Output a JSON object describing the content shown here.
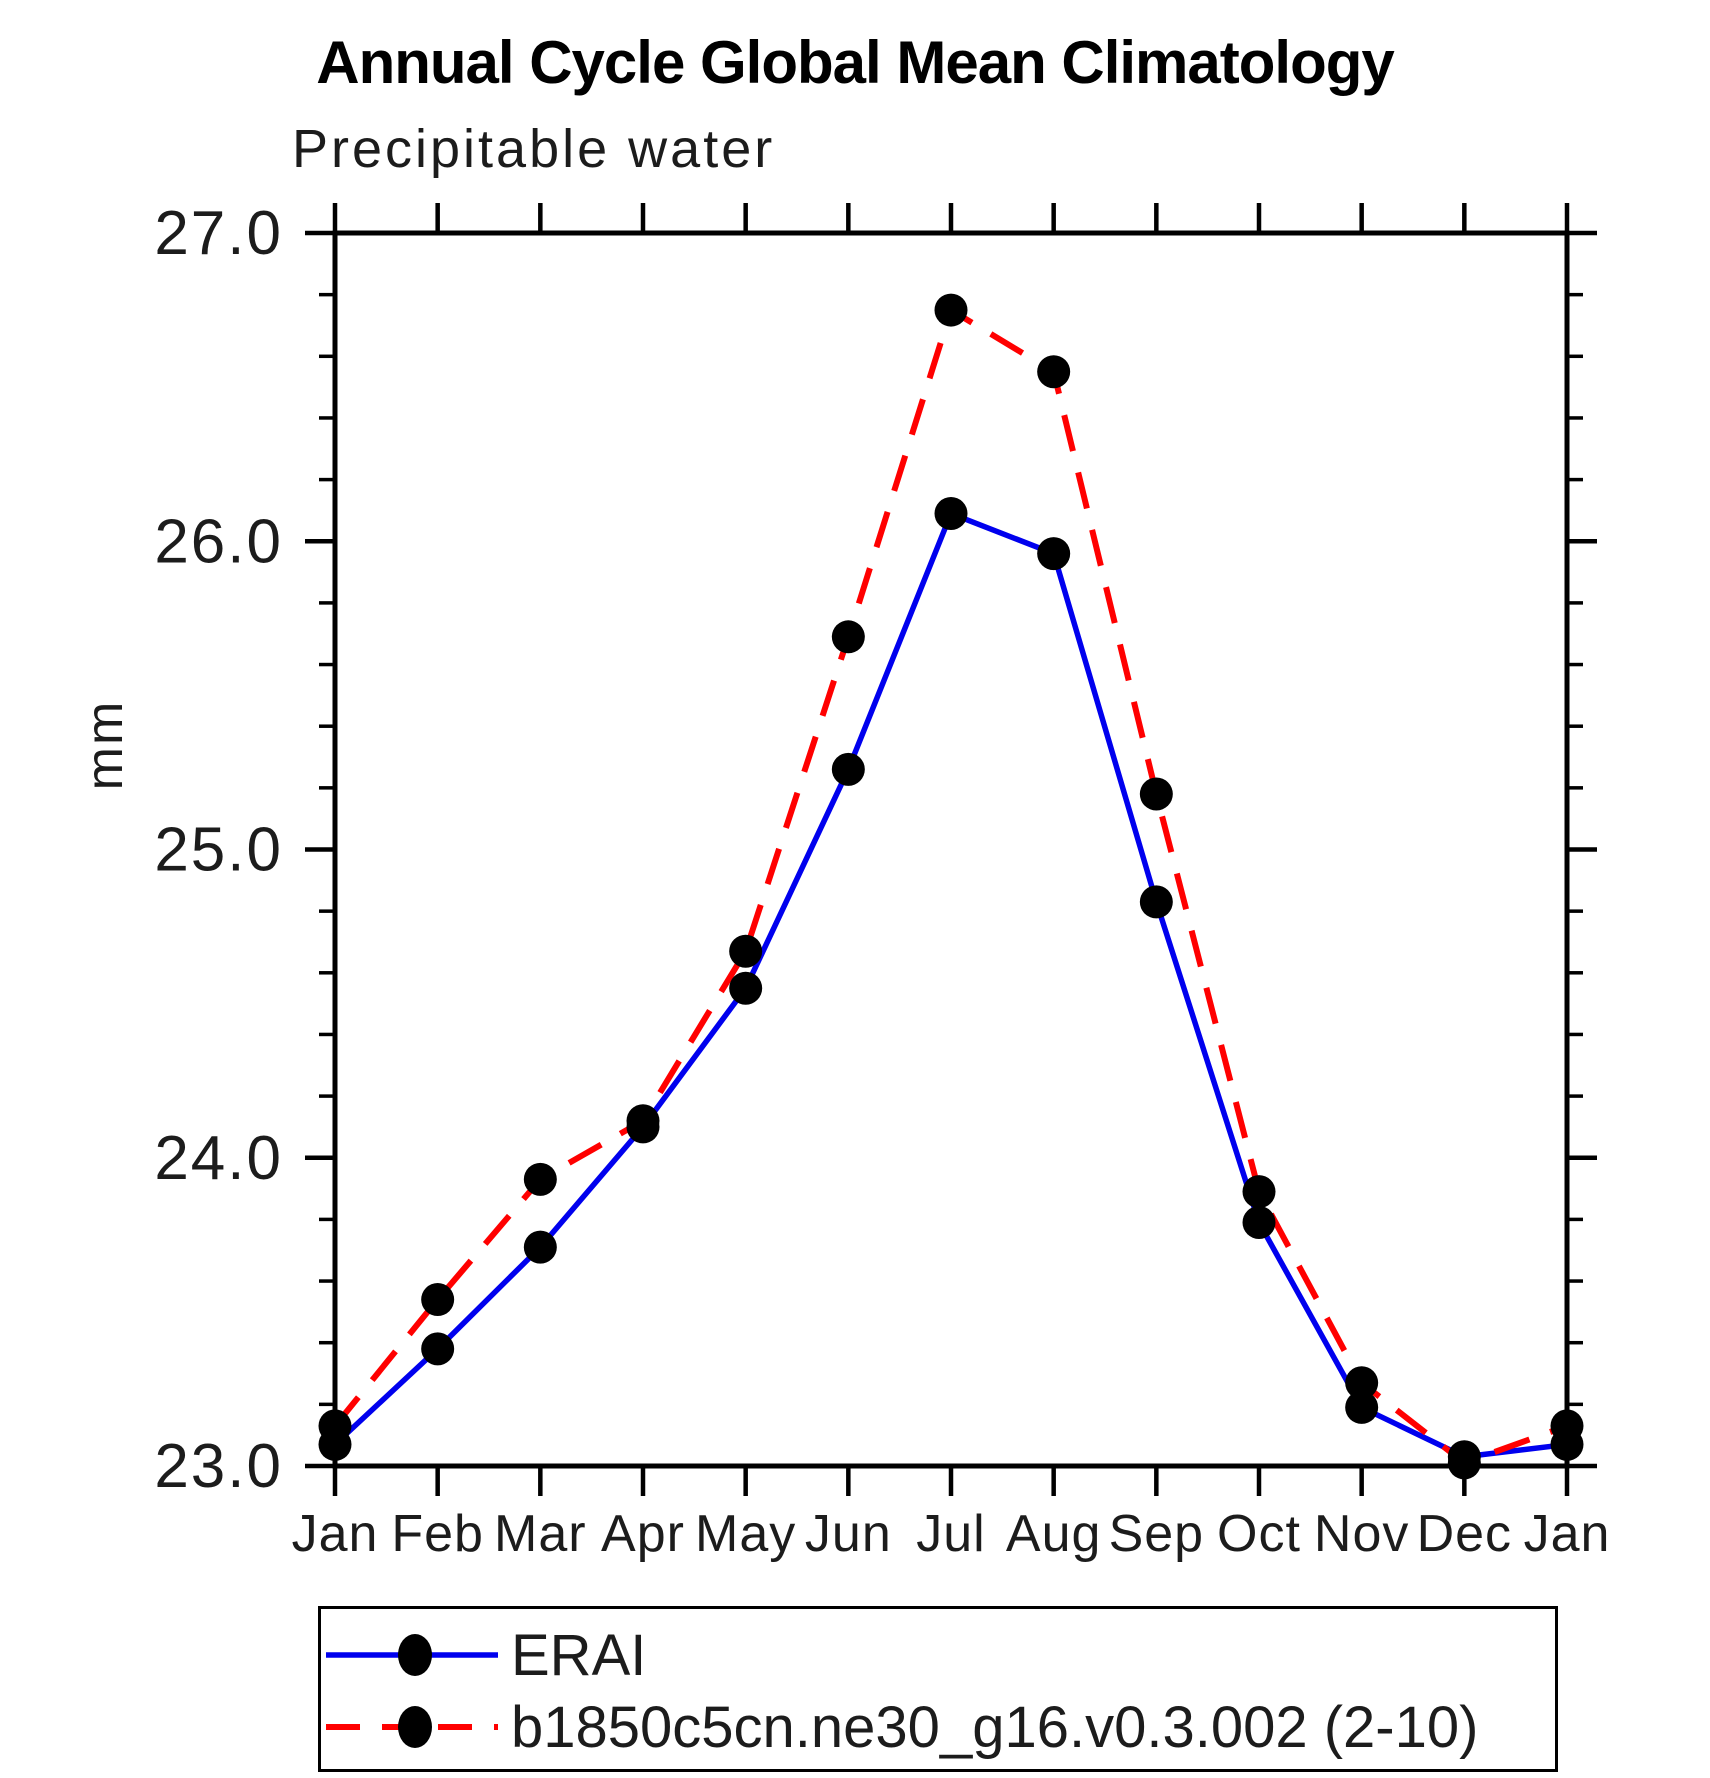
{
  "chart_data": {
    "type": "line",
    "title": "Annual Cycle Global Mean Climatology",
    "subtitle": "Precipitable water",
    "ylabel": "mm",
    "xlabel": "",
    "categories": [
      "Jan",
      "Feb",
      "Mar",
      "Apr",
      "May",
      "Jun",
      "Jul",
      "Aug",
      "Sep",
      "Oct",
      "Nov",
      "Dec",
      "Jan"
    ],
    "ylim": [
      23.0,
      27.0
    ],
    "ytick_major_step": 1.0,
    "ytick_minor_step": 0.2,
    "ytick_labels": [
      "23.0",
      "24.0",
      "25.0",
      "26.0",
      "27.0"
    ],
    "grid": false,
    "legend_position": "bottom-left-box",
    "marker_color": "#000000",
    "axis_color": "#000000",
    "series": [
      {
        "name": "ERAI",
        "color": "#0000ee",
        "line_style": "solid",
        "marker": "circle",
        "values": [
          23.07,
          23.38,
          23.71,
          24.1,
          24.55,
          25.26,
          26.09,
          25.96,
          24.83,
          23.79,
          23.19,
          23.03,
          23.07
        ]
      },
      {
        "name": "b1850c5cn.ne30_g16.v0.3.002 (2-10)",
        "color": "#ff0000",
        "line_style": "dashed",
        "marker": "circle",
        "values": [
          23.13,
          23.54,
          23.93,
          24.12,
          24.67,
          25.69,
          26.75,
          26.55,
          25.18,
          23.89,
          23.27,
          23.01,
          23.13
        ]
      }
    ]
  }
}
